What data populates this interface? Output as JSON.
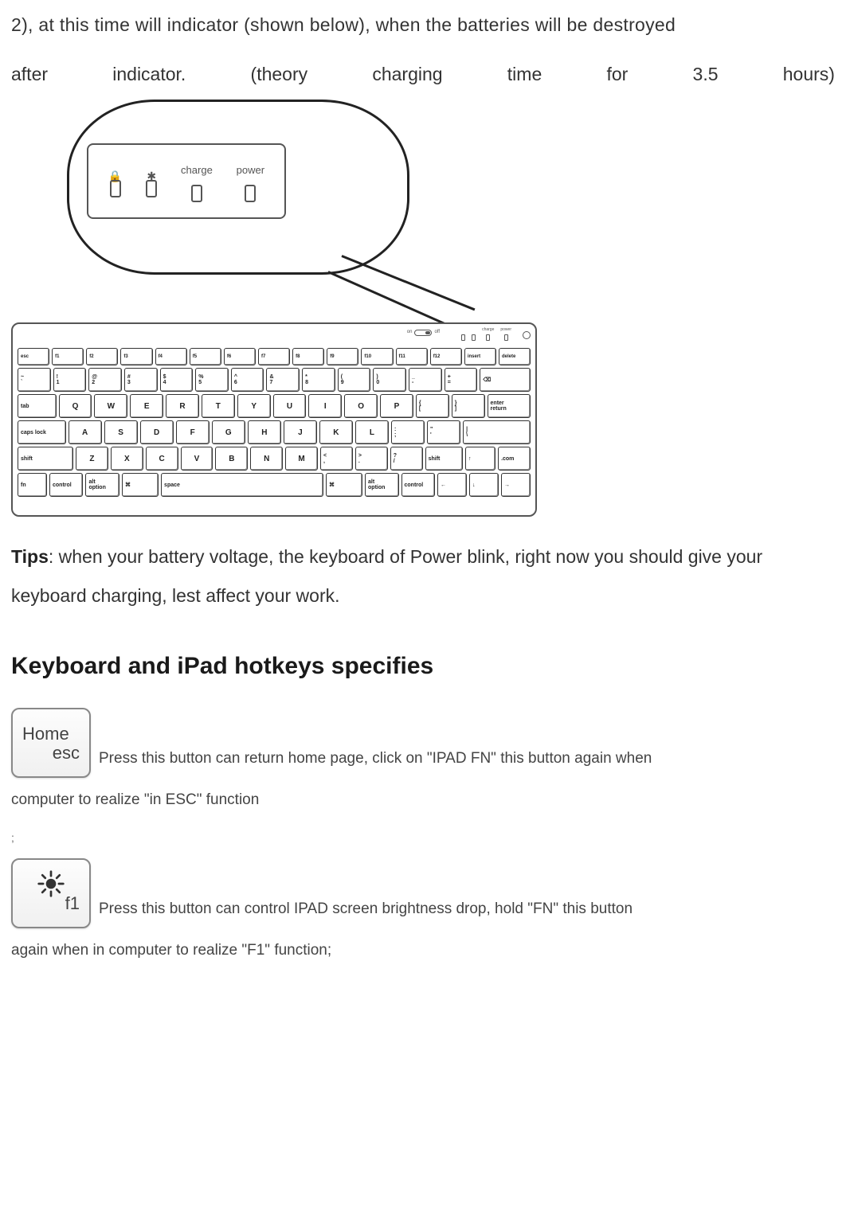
{
  "intro": {
    "line1": "2), at this time will indicator (shown below), when the batteries will be destroyed",
    "w1": "after",
    "w2": "indicator.",
    "w3": "(theory",
    "w4": "charging",
    "w5": "time",
    "w6": "for",
    "w7": "3.5",
    "w8": "hours)"
  },
  "callout": {
    "led1_icon": "🔒",
    "led2_icon": "✱",
    "led3_label": "charge",
    "led4_label": "power"
  },
  "keyboard": {
    "on_label": "on",
    "off_label": "off",
    "leds": [
      "",
      "",
      "charge",
      "power"
    ],
    "row_fn": [
      "esc",
      "f1",
      "f2",
      "f3",
      "f4",
      "f5",
      "f6",
      "f7",
      "f8",
      "f9",
      "f10",
      "f11",
      "f12",
      "insert",
      "delete"
    ],
    "row1": [
      "~\n`",
      "!\n1",
      "@\n2",
      "#\n3",
      "$\n4",
      "%\n5",
      "^\n6",
      "&\n7",
      "*\n8",
      "(\n9",
      ")\n0",
      "_\n-",
      "+\n=",
      "⌫"
    ],
    "row2": [
      "tab",
      "Q",
      "W",
      "E",
      "R",
      "T",
      "Y",
      "U",
      "I",
      "O",
      "P",
      "{\n[",
      "}\n]",
      "enter\nreturn"
    ],
    "row3": [
      "caps lock",
      "A",
      "S",
      "D",
      "F",
      "G",
      "H",
      "J",
      "K",
      "L",
      ":\n;",
      "\"\n'",
      "|\n\\"
    ],
    "row4": [
      "shift",
      "Z",
      "X",
      "C",
      "V",
      "B",
      "N",
      "M",
      "<\n,",
      ">\n.",
      "?\n/",
      "shift",
      "↑",
      ".com"
    ],
    "row5": [
      "fn",
      "control",
      "alt\noption",
      "⌘",
      "space",
      "⌘",
      "alt\noption",
      "control",
      "←",
      "↓",
      "→"
    ],
    "widths": {
      "fn": 42,
      "std": 43,
      "wide": 62,
      "tab": 50,
      "caps": 62,
      "shift": 74,
      "shift_r": 50,
      "space": 224,
      "bksp": 66,
      "enter": 56,
      "mod": 50,
      "arrow": 40,
      "ctrl": 46
    }
  },
  "tips": {
    "label": "Tips",
    "text": ": when your battery voltage, the keyboard of Power blink, right now you should give your keyboard charging, lest affect your work."
  },
  "heading": "Keyboard and iPad hotkeys specifies",
  "hotkey1": {
    "top": "Home",
    "bot": "esc",
    "desc": "Press this button can return home page, click on \"IPAD FN\" this button again when",
    "cont": "computer to realize \"in ESC\" function"
  },
  "colon": ";",
  "hotkey2": {
    "bot": "f1",
    "desc": "Press this button can control IPAD screen brightness drop, hold \"FN\" this button",
    "cont": "again when in computer to realize \"F1\" function;"
  },
  "colors": {
    "text": "#333333",
    "border": "#555555",
    "key_border": "#333333",
    "button_border": "#888888"
  }
}
